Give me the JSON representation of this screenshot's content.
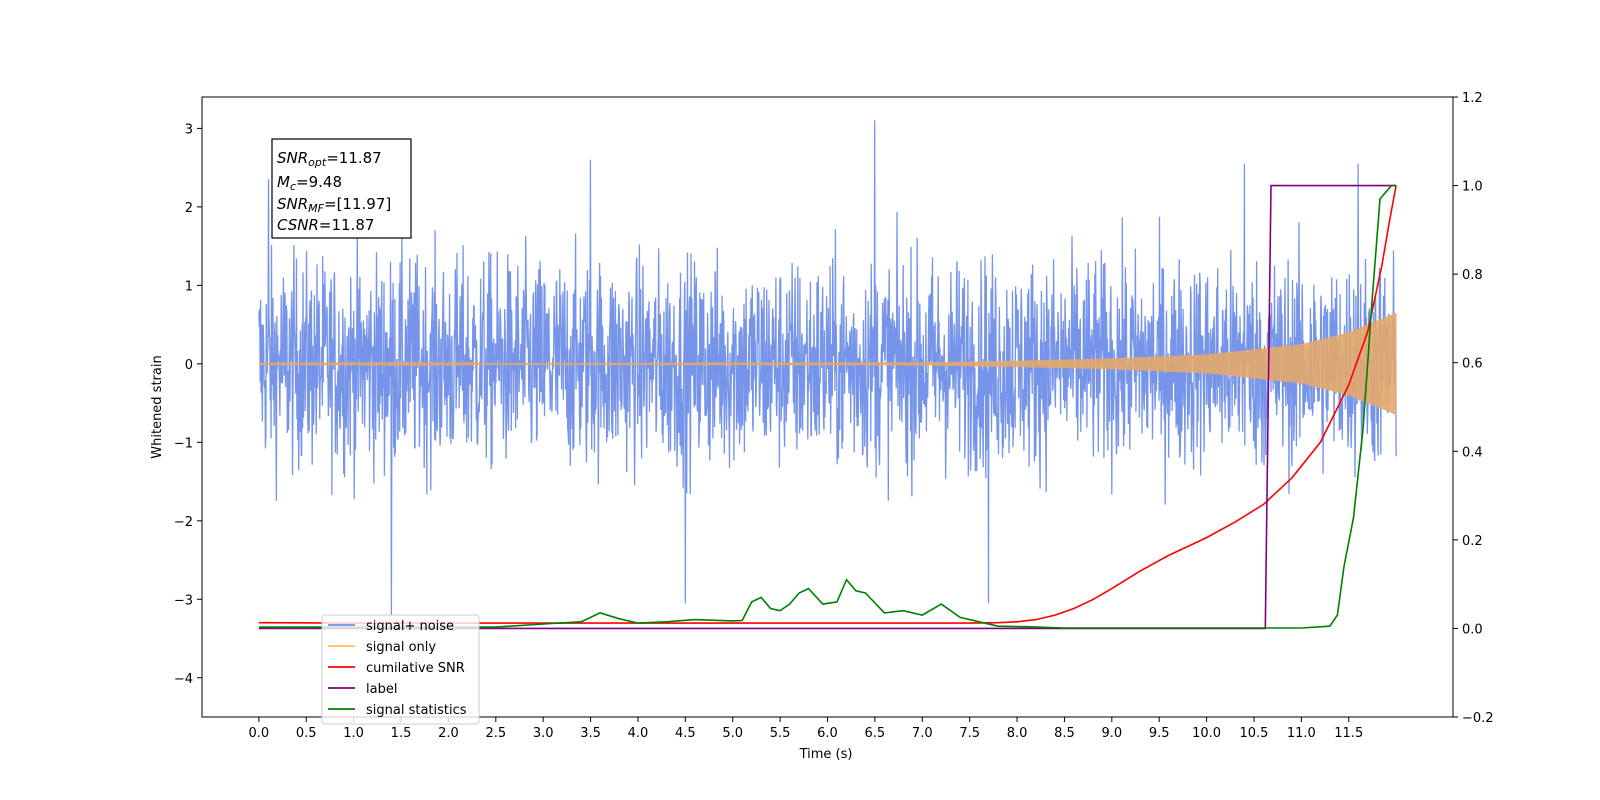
{
  "chart_data": {
    "type": "line",
    "xlabel": "Time (s)",
    "ylabel": "Whitened strain",
    "xlim": [
      -0.6,
      12.6
    ],
    "ylim_left": [
      -4.5,
      3.4
    ],
    "ylim_right": [
      -0.2,
      1.2
    ],
    "x_ticks": [
      0.0,
      0.5,
      1.0,
      1.5,
      2.0,
      2.5,
      3.0,
      3.5,
      4.0,
      4.5,
      5.0,
      5.5,
      6.0,
      6.5,
      7.0,
      7.5,
      8.0,
      8.5,
      9.0,
      9.5,
      10.0,
      10.5,
      11.0,
      11.5
    ],
    "x_tick_labels": [
      "0.0",
      "0.5",
      "1.0",
      "1.5",
      "2.0",
      "2.5",
      "3.0",
      "3.5",
      "4.0",
      "4.5",
      "5.0",
      "5.5",
      "6.0",
      "6.5",
      "7.0",
      "7.5",
      "8.0",
      "8.5",
      "9.0",
      "9.5",
      "10.0",
      "10.5",
      "11.0",
      "11.5"
    ],
    "y_left_ticks": [
      3,
      2,
      1,
      0,
      -1,
      -2,
      -3,
      -4
    ],
    "y_left_tick_labels": [
      "3",
      "2",
      "1",
      "0",
      "−1",
      "−2",
      "−3",
      "−4"
    ],
    "y_right_ticks": [
      1.2,
      1.0,
      0.8,
      0.6,
      0.4,
      0.2,
      0.0,
      -0.2
    ],
    "y_right_tick_labels": [
      "1.2",
      "1.0",
      "0.8",
      "0.6",
      "0.4",
      "0.2",
      "0.0",
      "−0.2"
    ],
    "grid": false,
    "legend_location": "lower-left",
    "annotation": {
      "snr_opt": {
        "base": "SNR",
        "sub": "opt",
        "value": "=11.87"
      },
      "mc": {
        "base": "M",
        "sub": "c",
        "value": "=9.48"
      },
      "snr_mf": {
        "base": "SNR",
        "sub": "MF",
        "value": "=[11.97]"
      },
      "csnr": {
        "base": "CSNR",
        "value": "=11.87"
      }
    },
    "series": [
      {
        "name": "signal+ noise",
        "axis": "left",
        "color": "#6f8ee8",
        "description": "whitened noise band",
        "t_range": [
          0.0,
          12.0
        ],
        "typical_amplitude": 1.6,
        "peaks": [
          [
            0.1,
            2.35
          ],
          [
            1.4,
            -3.2
          ],
          [
            3.5,
            2.6
          ],
          [
            4.5,
            -3.05
          ],
          [
            6.5,
            3.1
          ],
          [
            7.7,
            -3.05
          ],
          [
            10.4,
            2.55
          ],
          [
            11.6,
            2.55
          ]
        ]
      },
      {
        "name": "signal only",
        "axis": "left",
        "color": "#e4a86a",
        "description": "chirp whose envelope grows toward merger",
        "t_range": [
          0.0,
          12.0
        ],
        "envelope": [
          [
            0.0,
            0.005
          ],
          [
            7.0,
            0.02
          ],
          [
            8.0,
            0.04
          ],
          [
            9.0,
            0.07
          ],
          [
            10.0,
            0.12
          ],
          [
            11.0,
            0.25
          ],
          [
            11.5,
            0.4
          ],
          [
            12.0,
            0.65
          ]
        ]
      },
      {
        "name": "cumilative SNR",
        "axis": "right",
        "color": "#ff0000",
        "points": [
          [
            0.0,
            0.013
          ],
          [
            1.0,
            0.012
          ],
          [
            2.0,
            0.012
          ],
          [
            3.0,
            0.012
          ],
          [
            4.0,
            0.012
          ],
          [
            5.0,
            0.012
          ],
          [
            6.0,
            0.012
          ],
          [
            7.0,
            0.012
          ],
          [
            7.5,
            0.012
          ],
          [
            7.8,
            0.013
          ],
          [
            8.0,
            0.015
          ],
          [
            8.2,
            0.02
          ],
          [
            8.4,
            0.03
          ],
          [
            8.6,
            0.045
          ],
          [
            8.8,
            0.065
          ],
          [
            9.0,
            0.09
          ],
          [
            9.3,
            0.13
          ],
          [
            9.6,
            0.165
          ],
          [
            10.0,
            0.205
          ],
          [
            10.3,
            0.24
          ],
          [
            10.6,
            0.28
          ],
          [
            10.9,
            0.34
          ],
          [
            11.2,
            0.42
          ],
          [
            11.5,
            0.55
          ],
          [
            11.7,
            0.67
          ],
          [
            11.85,
            0.82
          ],
          [
            11.93,
            0.92
          ],
          [
            12.0,
            1.0
          ]
        ]
      },
      {
        "name": "label",
        "axis": "right",
        "color": "#800080",
        "points": [
          [
            0.0,
            0.0
          ],
          [
            10.62,
            0.0
          ],
          [
            10.68,
            1.0
          ],
          [
            12.0,
            1.0
          ]
        ]
      },
      {
        "name": "signal statistics",
        "axis": "right",
        "color": "#008000",
        "points": [
          [
            0.0,
            0.003
          ],
          [
            2.5,
            0.003
          ],
          [
            3.0,
            0.01
          ],
          [
            3.4,
            0.015
          ],
          [
            3.6,
            0.035
          ],
          [
            3.8,
            0.022
          ],
          [
            4.0,
            0.012
          ],
          [
            4.3,
            0.015
          ],
          [
            4.6,
            0.02
          ],
          [
            5.0,
            0.017
          ],
          [
            5.1,
            0.018
          ],
          [
            5.2,
            0.06
          ],
          [
            5.3,
            0.07
          ],
          [
            5.4,
            0.045
          ],
          [
            5.5,
            0.04
          ],
          [
            5.6,
            0.055
          ],
          [
            5.7,
            0.08
          ],
          [
            5.8,
            0.09
          ],
          [
            5.95,
            0.055
          ],
          [
            6.1,
            0.06
          ],
          [
            6.2,
            0.11
          ],
          [
            6.3,
            0.085
          ],
          [
            6.4,
            0.08
          ],
          [
            6.6,
            0.035
          ],
          [
            6.8,
            0.04
          ],
          [
            7.0,
            0.03
          ],
          [
            7.2,
            0.055
          ],
          [
            7.4,
            0.025
          ],
          [
            7.6,
            0.015
          ],
          [
            7.8,
            0.005
          ],
          [
            8.1,
            0.004
          ],
          [
            8.5,
            0.001
          ],
          [
            9.0,
            0.001
          ],
          [
            11.0,
            0.001
          ],
          [
            11.3,
            0.005
          ],
          [
            11.38,
            0.03
          ],
          [
            11.45,
            0.14
          ],
          [
            11.55,
            0.25
          ],
          [
            11.65,
            0.45
          ],
          [
            11.75,
            0.75
          ],
          [
            11.83,
            0.97
          ],
          [
            11.95,
            1.0
          ],
          [
            12.0,
            1.0
          ]
        ]
      }
    ],
    "legend_entries": [
      {
        "label": "signal+ noise",
        "color": "#6f8ee8"
      },
      {
        "label": "signal only",
        "color": "#ffbf5a"
      },
      {
        "label": "cumilative SNR",
        "color": "#ff0000"
      },
      {
        "label": "label",
        "color": "#800080"
      },
      {
        "label": "signal statistics",
        "color": "#008000"
      }
    ]
  }
}
